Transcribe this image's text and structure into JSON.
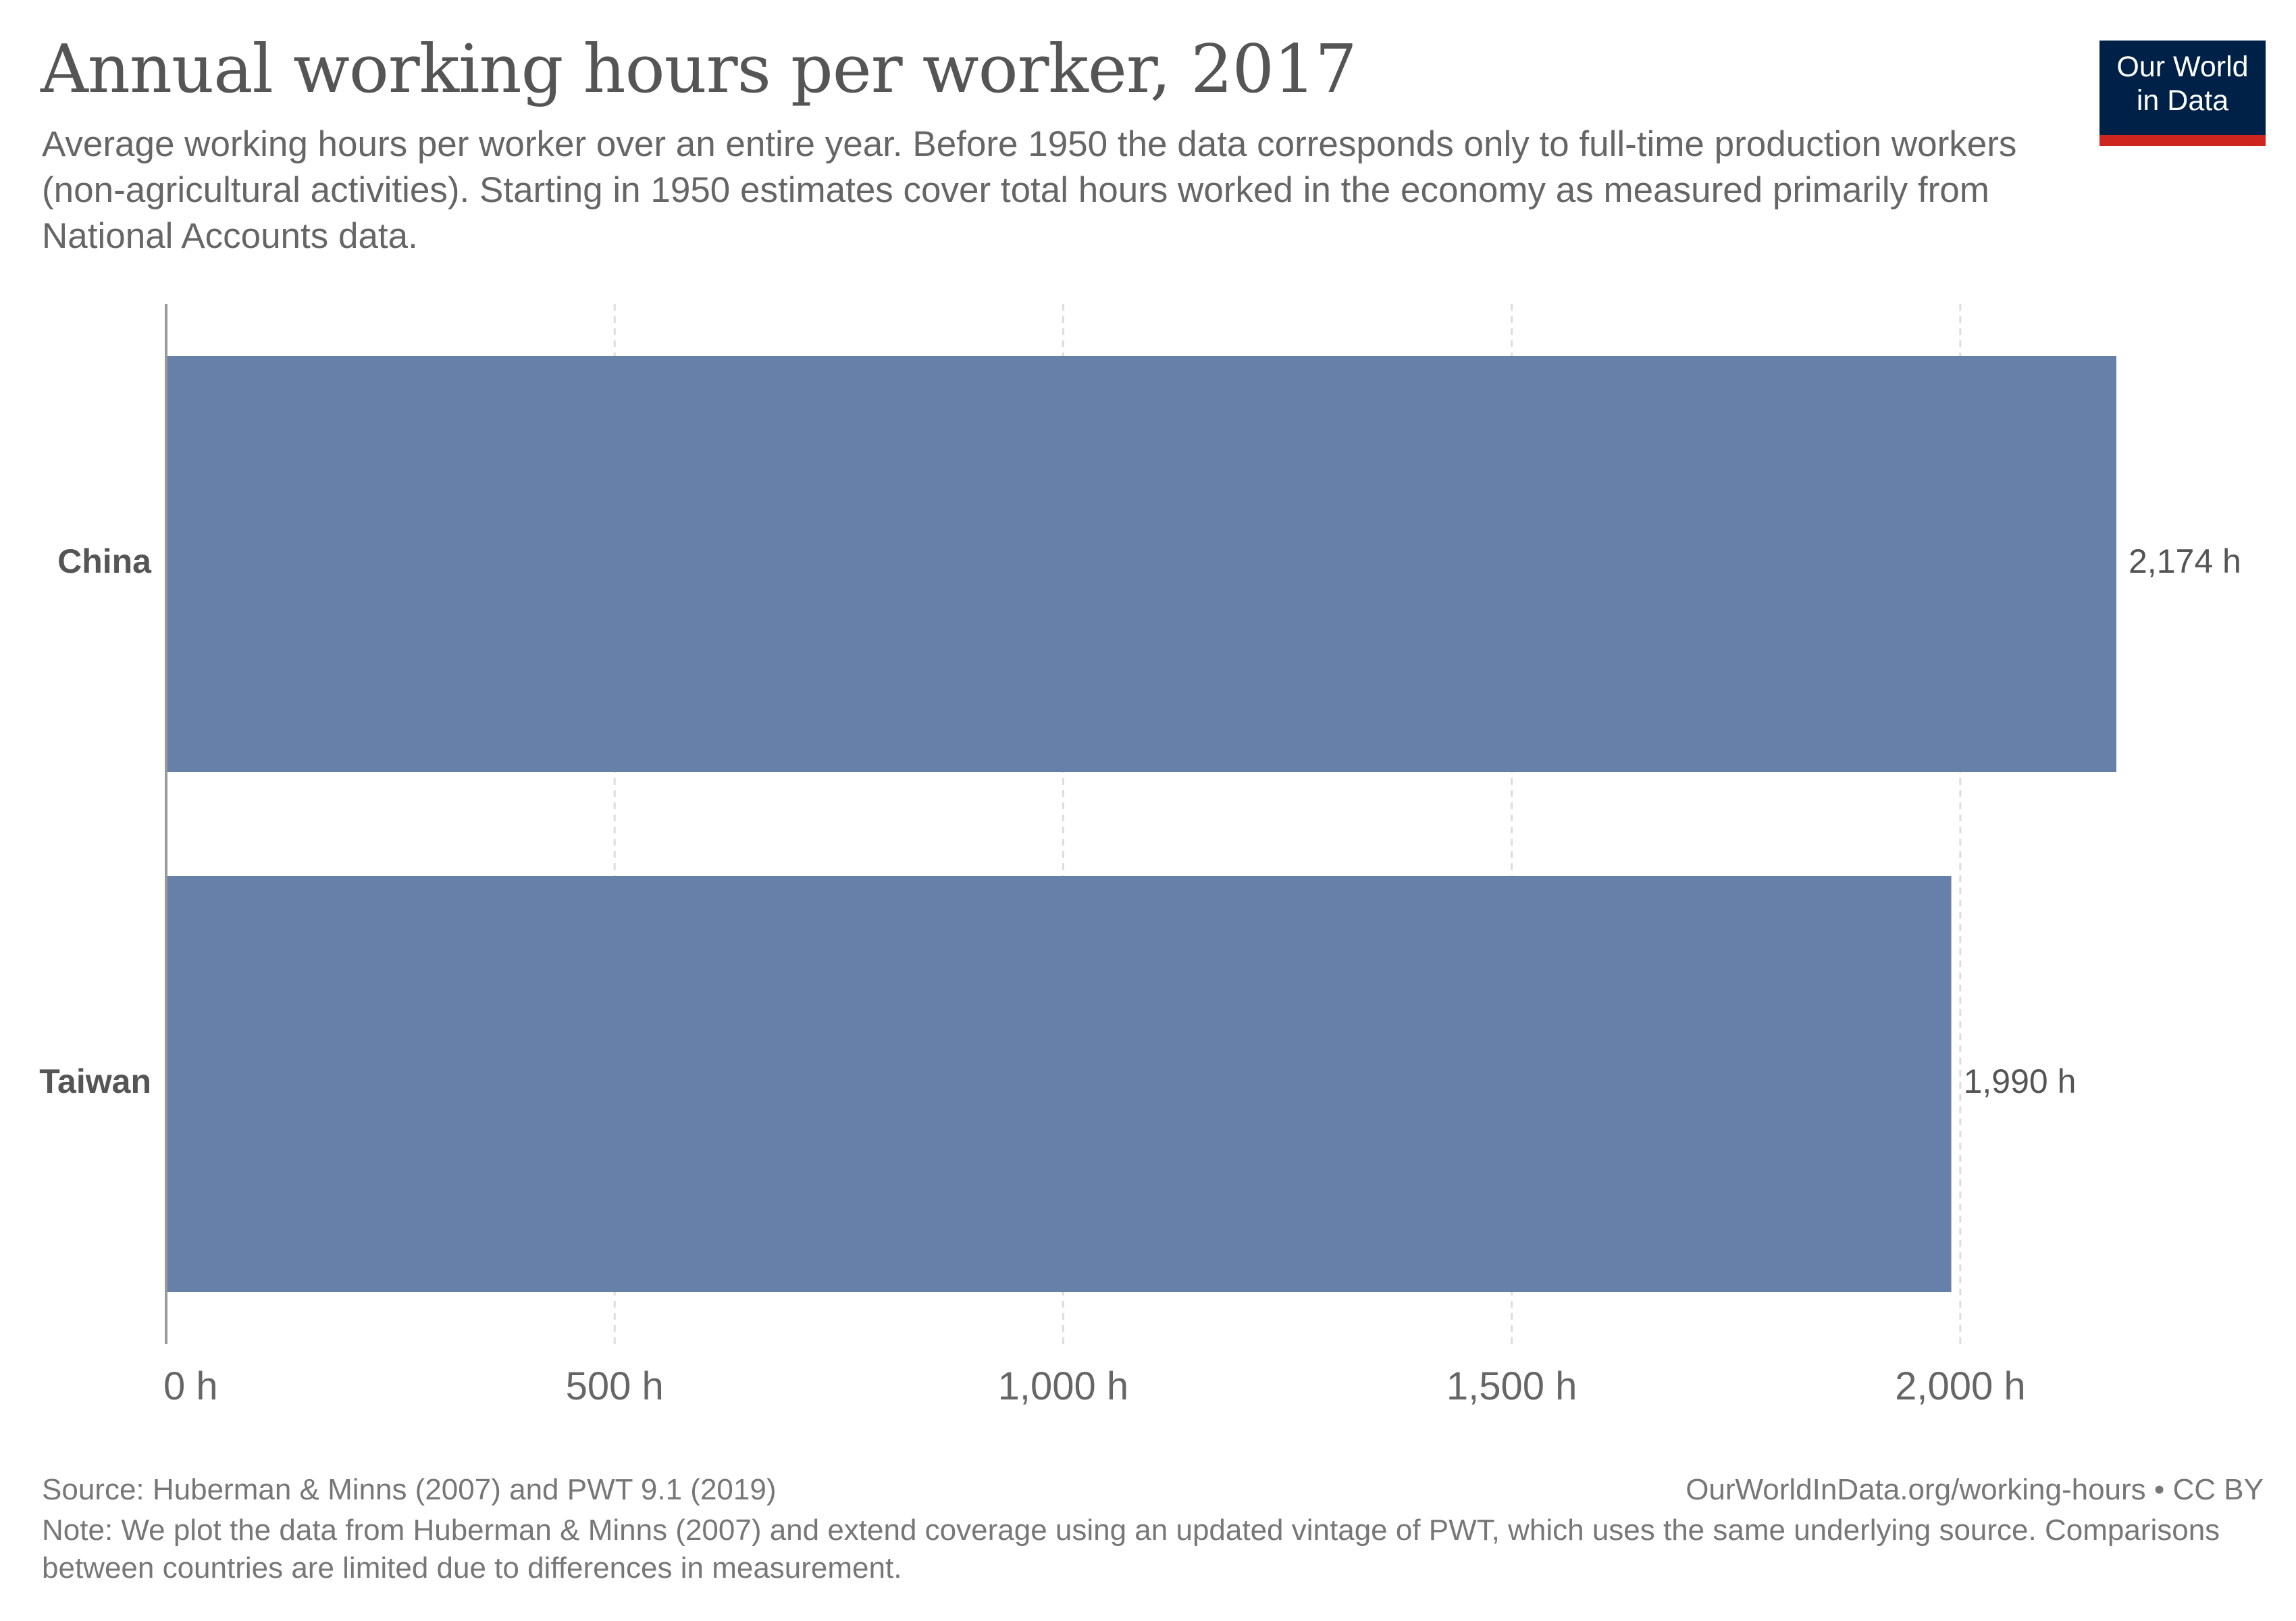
{
  "header": {
    "title": "Annual working hours per worker, 2017",
    "subtitle": "Average working hours per worker over an entire year. Before 1950 the data corresponds only to full-time production workers (non-agricultural activities). Starting in 1950 estimates cover total hours worked in the economy as measured primarily from National Accounts data.",
    "logo_line1": "Our World",
    "logo_line2": "in Data"
  },
  "footer": {
    "source": "Source: Huberman & Minns (2007) and PWT 9.1 (2019)",
    "credit": "OurWorldInData.org/working-hours • CC BY",
    "note": "Note: We plot the data from Huberman & Minns (2007) and extend coverage using an updated vintage of PWT, which uses the same underlying source. Comparisons between countries are limited due to differences in measurement."
  },
  "colors": {
    "bar": "#6780aa",
    "logo_bg": "#002147",
    "logo_accent": "#ce261e"
  },
  "chart_data": {
    "type": "bar",
    "orientation": "horizontal",
    "title": "Annual working hours per worker, 2017",
    "categories": [
      "China",
      "Taiwan"
    ],
    "values": [
      2174,
      1990
    ],
    "value_labels": [
      "2,174 h",
      "1,990 h"
    ],
    "xlim": [
      0,
      2174
    ],
    "x_ticks": [
      0,
      500,
      1000,
      1500,
      2000
    ],
    "x_tick_labels": [
      "0 h",
      "500 h",
      "1,000 h",
      "1,500 h",
      "2,000 h"
    ],
    "grid": true,
    "legend": "none"
  }
}
